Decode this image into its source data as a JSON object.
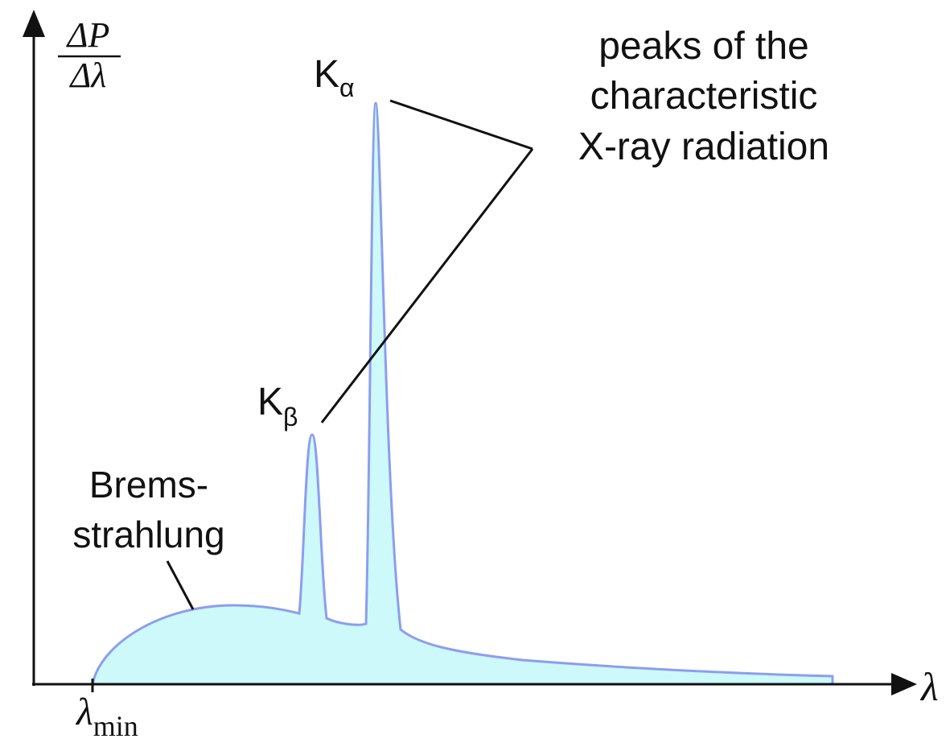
{
  "axes": {
    "y_label": {
      "numerator": "ΔP",
      "denominator": "Δλ"
    },
    "x_label": "λ",
    "x_min": {
      "symbol": "λ",
      "subscript": "min"
    }
  },
  "labels": {
    "bremsstrahlung": [
      "Brems-",
      "strahlung"
    ],
    "k_alpha": {
      "symbol": "K",
      "subscript": "α"
    },
    "k_beta": {
      "symbol": "K",
      "subscript": "β"
    },
    "characteristic": [
      "peaks of the",
      "characteristic",
      "X-ray radiation"
    ]
  }
}
